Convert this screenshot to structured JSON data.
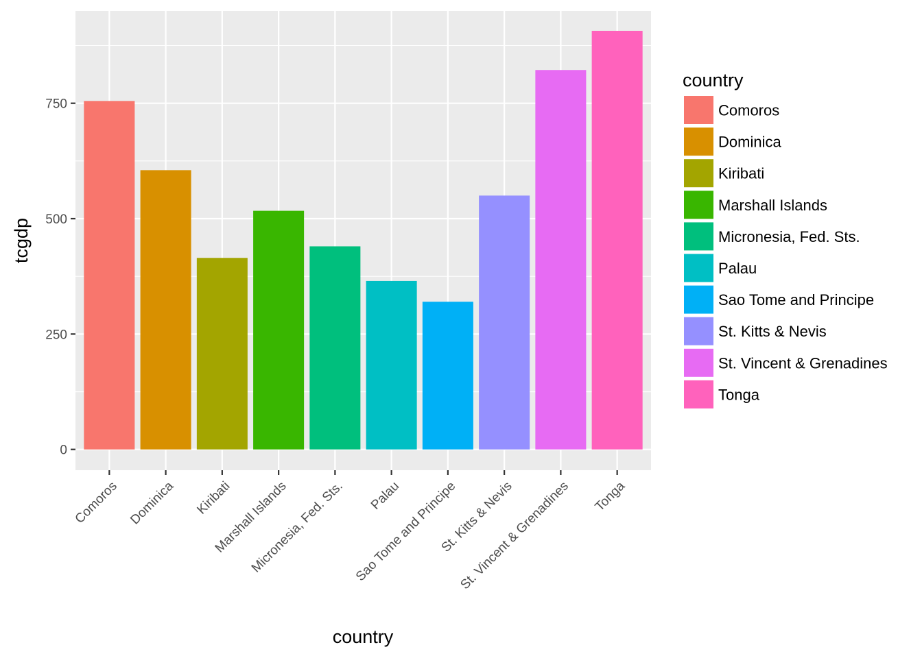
{
  "chart_data": {
    "type": "bar",
    "title": "",
    "xlabel": "country",
    "ylabel": "tcgdp",
    "categories": [
      "Comoros",
      "Dominica",
      "Kiribati",
      "Marshall Islands",
      "Micronesia, Fed. Sts.",
      "Palau",
      "Sao Tome and Principe",
      "St. Kitts & Nevis",
      "St. Vincent & Grenadines",
      "Tonga"
    ],
    "values": [
      755,
      605,
      415,
      517,
      440,
      365,
      320,
      550,
      822,
      907
    ],
    "colors": [
      "#F8766D",
      "#D89000",
      "#A3A500",
      "#39B600",
      "#00BF7D",
      "#00BFC4",
      "#00B0F6",
      "#9590FF",
      "#E76BF3",
      "#FF62BC"
    ],
    "ylim": [
      -45,
      950
    ],
    "yticks": [
      0,
      250,
      500,
      750
    ],
    "grid": true,
    "legend": {
      "title": "country",
      "position": "right"
    }
  }
}
